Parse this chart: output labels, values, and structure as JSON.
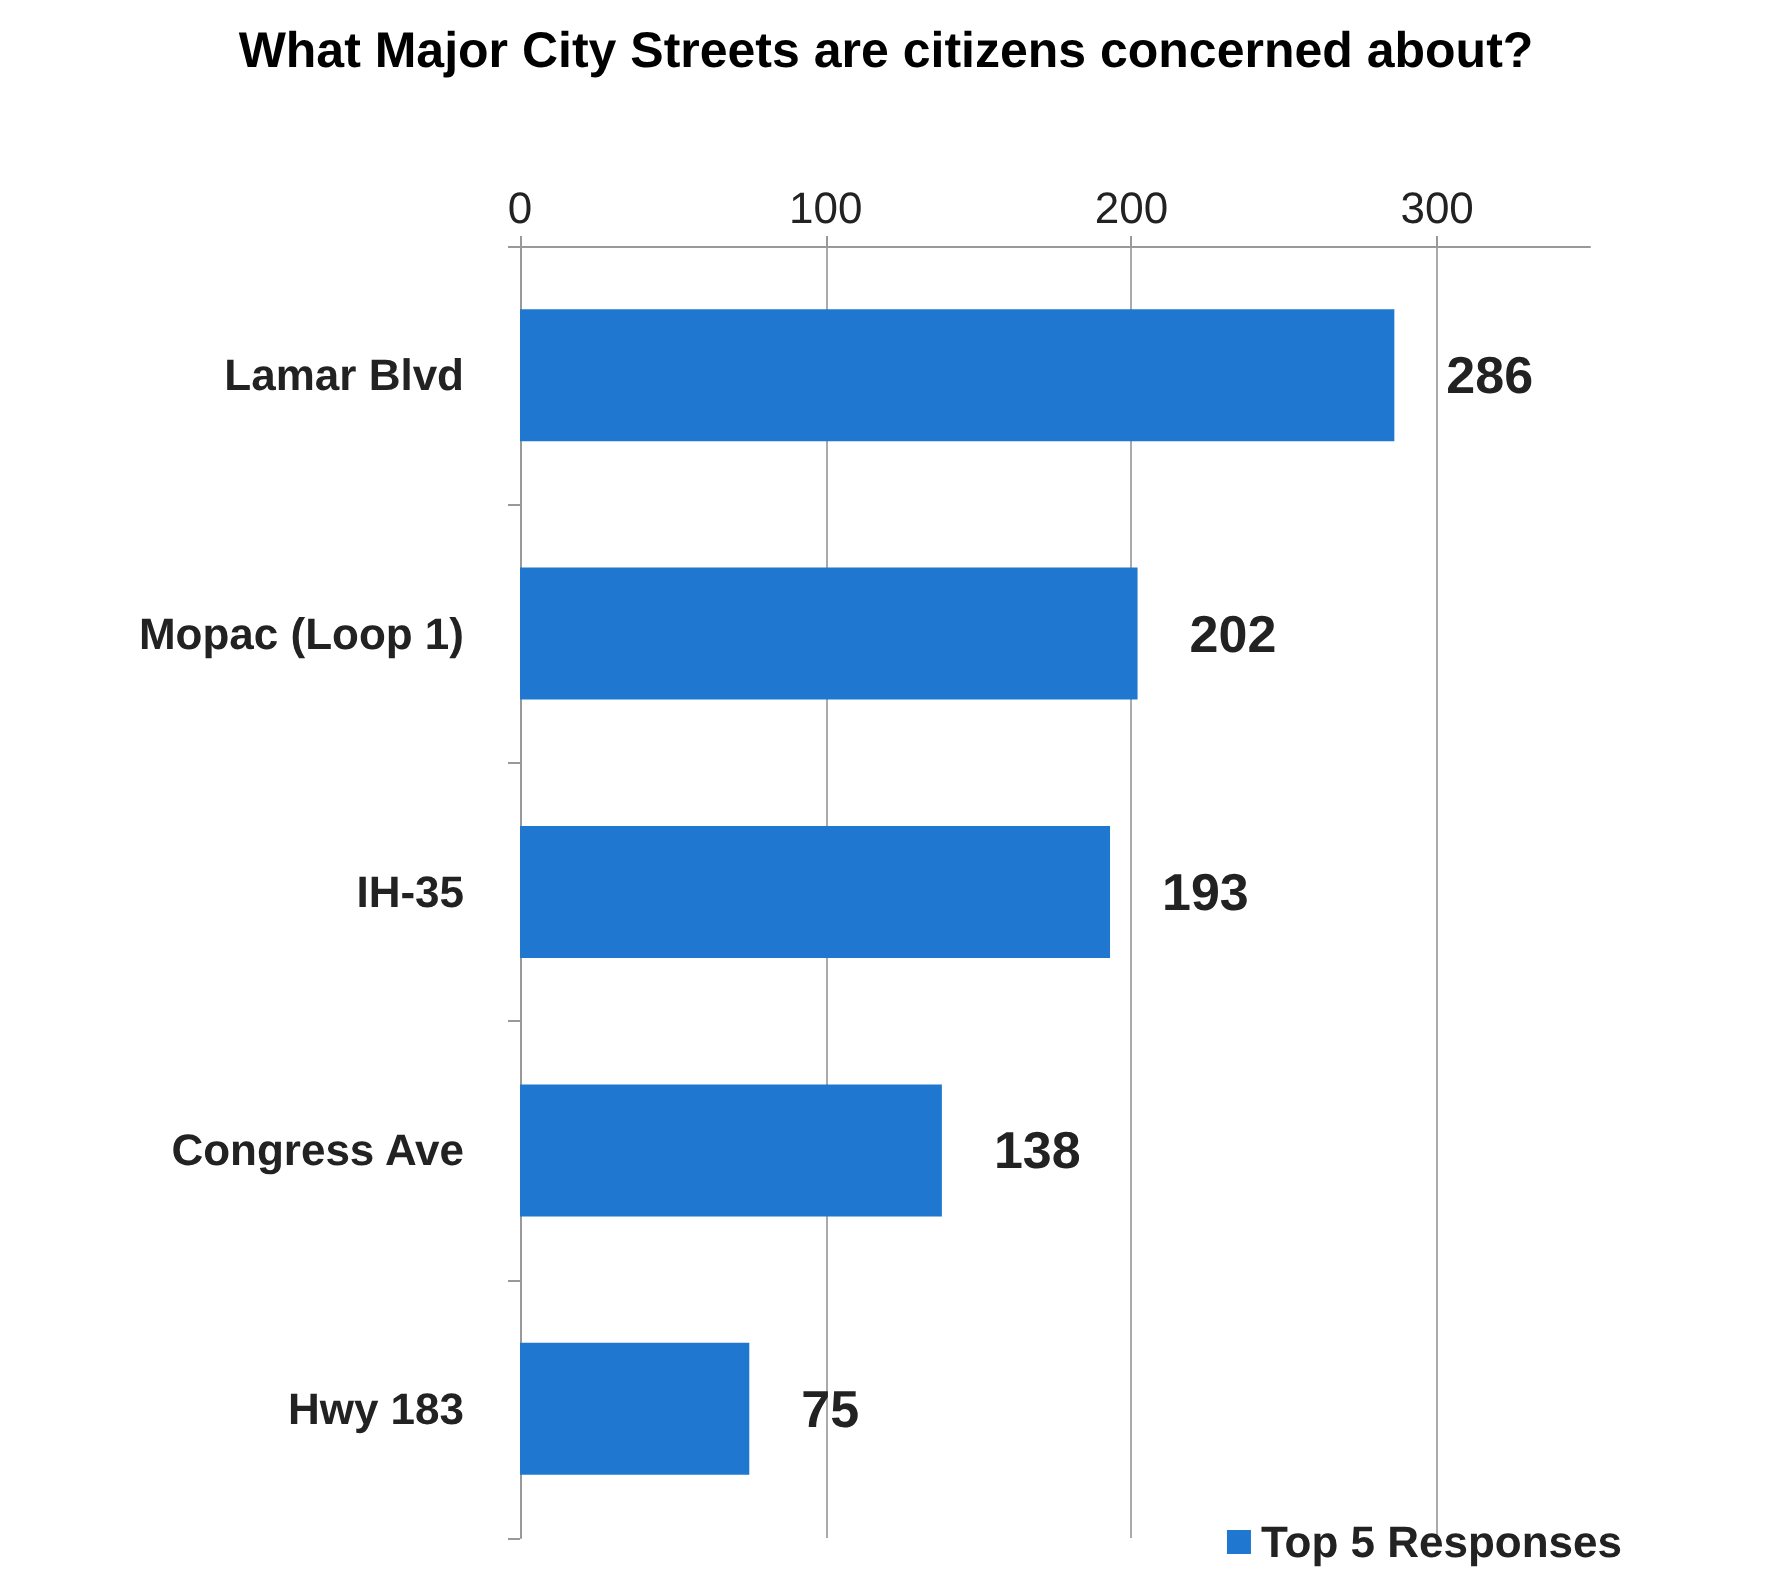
{
  "chart_data": {
    "type": "bar",
    "orientation": "horizontal",
    "title": "What Major City Streets are citizens concerned about?",
    "categories": [
      "Lamar Blvd",
      "Mopac (Loop 1)",
      "IH-35",
      "Congress Ave",
      "Hwy 183"
    ],
    "series": [
      {
        "name": "Top 5 Responses",
        "color": "#1f77d0",
        "values": [
          286,
          202,
          193,
          138,
          75
        ]
      }
    ],
    "xlim": [
      0,
      350
    ],
    "xticks": [
      0,
      100,
      200,
      300
    ],
    "grid": "x",
    "data_labels": true,
    "legend": "bottom right"
  }
}
